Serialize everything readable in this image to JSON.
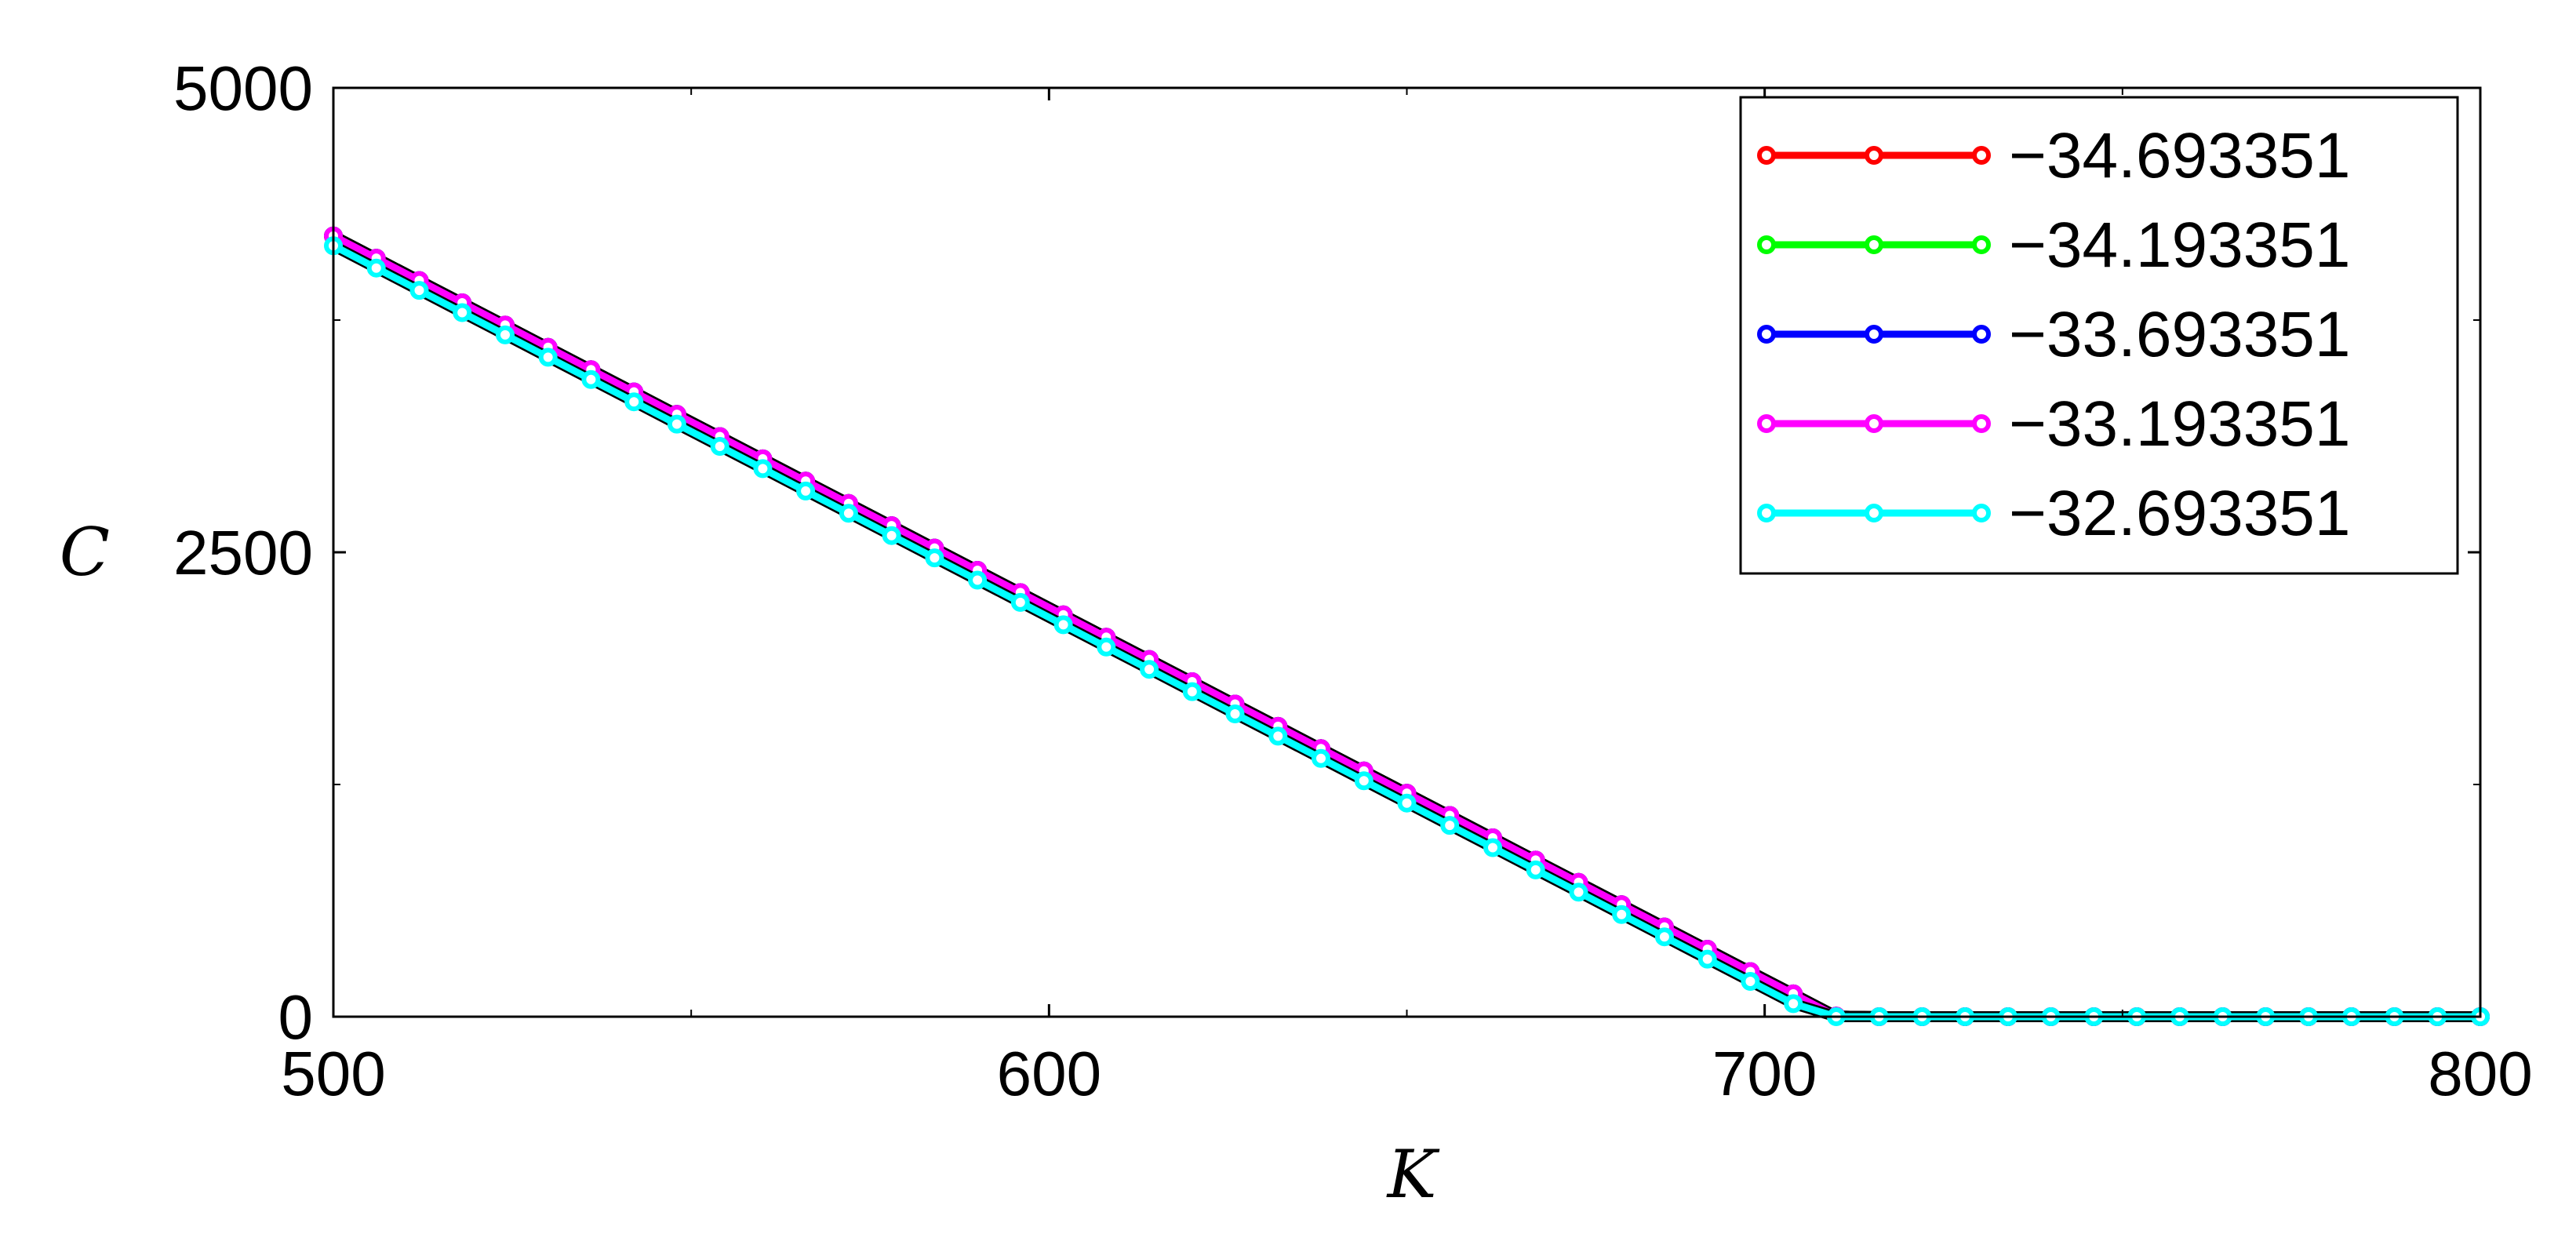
{
  "chart_data": {
    "type": "line",
    "title": "",
    "xlabel": "K",
    "ylabel": "C",
    "xlim": [
      500,
      800
    ],
    "ylim": [
      0,
      5000
    ],
    "x_ticks": [
      500,
      600,
      700,
      800
    ],
    "y_ticks": [
      0,
      2500,
      5000
    ],
    "grid": false,
    "legend_position": "top-right",
    "x_start": 500,
    "x_end": 800,
    "x_step": 6,
    "series": [
      {
        "name": "−34.693351",
        "color": "#ff0000",
        "intercept": 4203,
        "slope": 20.0,
        "floor": 0
      },
      {
        "name": "−34.193351",
        "color": "#00ff00",
        "intercept": 4203,
        "slope": 20.0,
        "floor": 0
      },
      {
        "name": "−33.693351",
        "color": "#0000ff",
        "intercept": 4203,
        "slope": 20.0,
        "floor": 0
      },
      {
        "name": "−33.193351",
        "color": "#ff00ff",
        "intercept": 4203,
        "slope": 20.0,
        "floor": 0
      },
      {
        "name": "−32.693351",
        "color": "#00ffff",
        "intercept": 4150,
        "slope": 20.0,
        "floor": 0
      }
    ]
  }
}
